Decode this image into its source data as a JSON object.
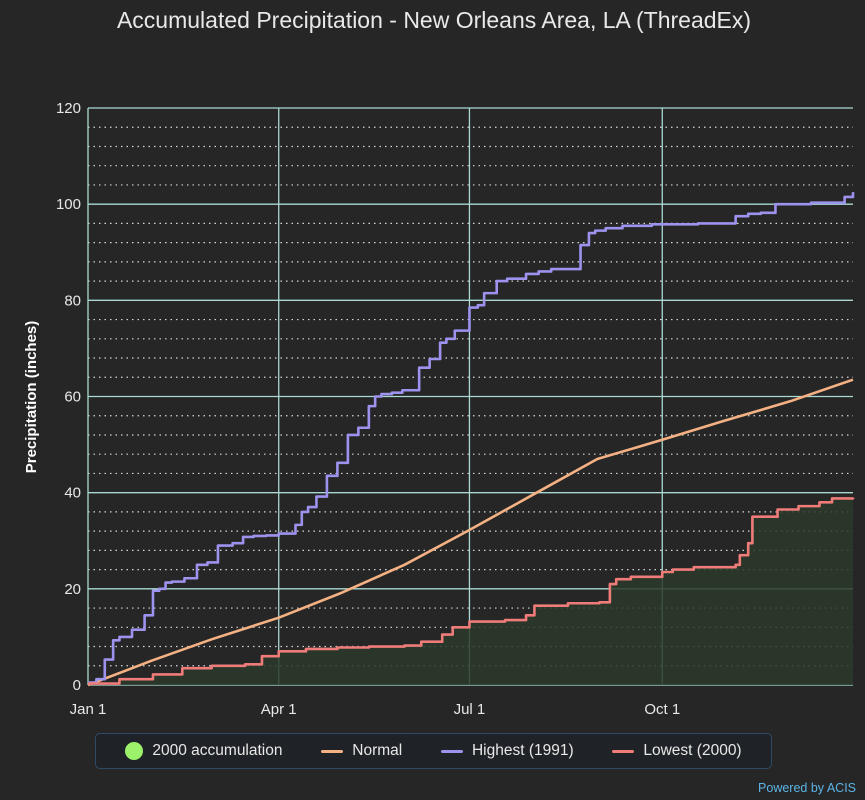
{
  "chart_data": {
    "type": "line",
    "title": "Accumulated Precipitation - New Orleans Area, LA (ThreadEx)",
    "ylabel": "Precipitation (inches)",
    "xlabel": "",
    "ylim": [
      0,
      120
    ],
    "xlim_day": [
      1,
      366
    ],
    "y_ticks": [
      "0",
      "20",
      "40",
      "60",
      "80",
      "100",
      "120"
    ],
    "y_tick_values": [
      0,
      20,
      40,
      60,
      80,
      100,
      120
    ],
    "x_ticks": [
      "Jan 1",
      "Apr 1",
      "Jul 1",
      "Oct 1"
    ],
    "x_tick_days": [
      1,
      92,
      183,
      275
    ],
    "grid": true,
    "legend_position": "bottom",
    "series": [
      {
        "name": "2000 accumulation",
        "kind": "area",
        "color": "#9cf26a",
        "fill": "#2c3a2a",
        "x": [
          1,
          16,
          32,
          46,
          60,
          76,
          84,
          92,
          105,
          120,
          135,
          152,
          160,
          170,
          175,
          183,
          200,
          210,
          214,
          230,
          245,
          250,
          253,
          260,
          275,
          280,
          290,
          310,
          312,
          316,
          318,
          330,
          340,
          350,
          356,
          366
        ],
        "y": [
          0.3,
          1.2,
          2.2,
          3.5,
          4.0,
          4.3,
          6.0,
          7.0,
          7.5,
          7.8,
          8.0,
          8.2,
          9.0,
          10.5,
          12.0,
          13.2,
          13.5,
          14.5,
          16.5,
          17.0,
          17.2,
          21.0,
          22.0,
          22.5,
          23.5,
          24.0,
          24.5,
          25.0,
          27.0,
          29.5,
          35.0,
          36.5,
          37.2,
          38.0,
          38.8,
          39.0
        ]
      },
      {
        "name": "Normal",
        "kind": "line",
        "color": "#f4b183",
        "x": [
          1,
          31,
          60,
          92,
          121,
          152,
          182,
          213,
          244,
          275,
          305,
          336,
          366
        ],
        "y": [
          0,
          5.0,
          9.5,
          14.0,
          19.0,
          25.0,
          32.0,
          39.5,
          47.0,
          51.0,
          55.0,
          59.0,
          63.5
        ]
      },
      {
        "name": "Highest (1991)",
        "kind": "line",
        "color": "#9d93ef",
        "x": [
          1,
          5,
          9,
          13,
          16,
          22,
          28,
          32,
          35,
          38,
          41,
          47,
          53,
          58,
          63,
          70,
          75,
          80,
          86,
          92,
          100,
          103,
          106,
          110,
          115,
          120,
          125,
          130,
          135,
          138,
          141,
          146,
          151,
          159,
          164,
          169,
          172,
          176,
          183,
          187,
          190,
          196,
          201,
          210,
          216,
          222,
          236,
          240,
          243,
          248,
          256,
          270,
          292,
          310,
          316,
          322,
          329,
          346,
          362,
          366
        ],
        "y": [
          0.5,
          1.2,
          5.3,
          9.3,
          10.0,
          11.5,
          14.5,
          19.6,
          20.0,
          21.3,
          21.5,
          22.2,
          25.0,
          25.5,
          29.0,
          29.5,
          30.8,
          31.0,
          31.1,
          31.5,
          33.3,
          36.0,
          37.0,
          39.2,
          43.5,
          46.2,
          52.0,
          53.5,
          58.0,
          60.0,
          60.5,
          60.8,
          61.3,
          66.0,
          67.8,
          71.2,
          72.0,
          73.7,
          78.5,
          79.0,
          81.5,
          84.0,
          84.5,
          85.5,
          86.0,
          86.5,
          91.5,
          94.0,
          94.5,
          95.0,
          95.5,
          95.8,
          96.0,
          97.5,
          98.0,
          98.2,
          100.0,
          100.3,
          101.5,
          102.5
        ]
      },
      {
        "name": "Lowest (2000)",
        "kind": "line",
        "color": "#f07c79",
        "x": [
          1,
          16,
          32,
          46,
          60,
          76,
          84,
          92,
          105,
          120,
          135,
          152,
          160,
          170,
          175,
          183,
          200,
          210,
          214,
          230,
          245,
          250,
          253,
          260,
          275,
          280,
          290,
          310,
          312,
          316,
          318,
          330,
          340,
          350,
          356,
          366
        ],
        "y": [
          0.3,
          1.2,
          2.2,
          3.5,
          4.0,
          4.3,
          6.0,
          7.0,
          7.5,
          7.8,
          8.0,
          8.2,
          9.0,
          10.5,
          12.0,
          13.2,
          13.5,
          14.5,
          16.5,
          17.0,
          17.2,
          21.0,
          22.0,
          22.5,
          23.5,
          24.0,
          24.5,
          25.0,
          27.0,
          29.5,
          35.0,
          36.5,
          37.2,
          38.0,
          38.8,
          39.0
        ]
      }
    ]
  },
  "legend": {
    "items": [
      {
        "label": "2000 accumulation",
        "color": "#9cf26a",
        "shape": "dot"
      },
      {
        "label": "Normal",
        "color": "#f4b183",
        "shape": "line"
      },
      {
        "label": "Highest (1991)",
        "color": "#9d93ef",
        "shape": "line"
      },
      {
        "label": "Lowest (2000)",
        "color": "#f07c79",
        "shape": "line"
      }
    ]
  },
  "credit": "Powered by ACIS"
}
